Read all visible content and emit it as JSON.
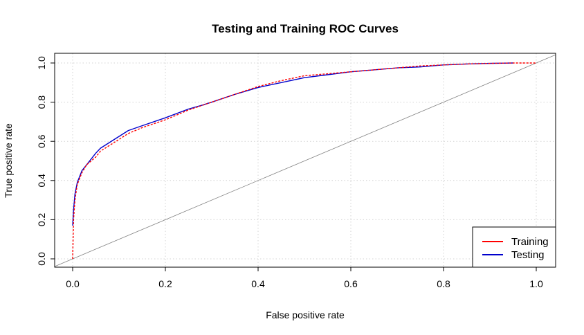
{
  "chart_data": {
    "type": "line",
    "title": "Testing and Training ROC Curves",
    "xlabel": "False positive rate",
    "ylabel": "True positive rate",
    "xlim": [
      0,
      1
    ],
    "ylim": [
      0,
      1
    ],
    "x_ticks": [
      "0.0",
      "0.2",
      "0.4",
      "0.6",
      "0.8",
      "1.0"
    ],
    "y_ticks": [
      "0.0",
      "0.2",
      "0.4",
      "0.6",
      "0.8",
      "1.0"
    ],
    "grid": true,
    "legend_position": "bottom-right",
    "reference_line": {
      "x": [
        0,
        1
      ],
      "y": [
        0,
        1
      ],
      "color": "#808080"
    },
    "series": [
      {
        "name": "Training",
        "color": "#ff0000",
        "line_style": "dashed",
        "x": [
          0,
          0.002,
          0.005,
          0.01,
          0.02,
          0.03,
          0.04,
          0.05,
          0.06,
          0.07,
          0.08,
          0.1,
          0.12,
          0.15,
          0.2,
          0.25,
          0.3,
          0.35,
          0.4,
          0.45,
          0.5,
          0.55,
          0.6,
          0.65,
          0.7,
          0.75,
          0.8,
          0.85,
          0.9,
          0.95,
          1.0
        ],
        "y": [
          0,
          0.2,
          0.3,
          0.38,
          0.44,
          0.48,
          0.5,
          0.52,
          0.55,
          0.565,
          0.58,
          0.61,
          0.64,
          0.67,
          0.71,
          0.76,
          0.8,
          0.84,
          0.88,
          0.91,
          0.935,
          0.945,
          0.955,
          0.965,
          0.975,
          0.985,
          0.99,
          0.995,
          0.998,
          1.0,
          1.0
        ]
      },
      {
        "name": "Testing",
        "color": "#0000cc",
        "line_style": "solid",
        "x": [
          0,
          0.002,
          0.005,
          0.01,
          0.02,
          0.03,
          0.04,
          0.05,
          0.06,
          0.07,
          0.08,
          0.1,
          0.12,
          0.15,
          0.2,
          0.25,
          0.28,
          0.3,
          0.35,
          0.4,
          0.45,
          0.5,
          0.55,
          0.6,
          0.65,
          0.7,
          0.75,
          0.8,
          0.85,
          0.9,
          0.95
        ],
        "y": [
          0.17,
          0.25,
          0.33,
          0.39,
          0.45,
          0.48,
          0.51,
          0.54,
          0.565,
          0.58,
          0.595,
          0.625,
          0.655,
          0.68,
          0.72,
          0.765,
          0.785,
          0.8,
          0.84,
          0.875,
          0.9,
          0.925,
          0.94,
          0.955,
          0.965,
          0.975,
          0.98,
          0.99,
          0.995,
          0.998,
          1.0
        ]
      }
    ]
  }
}
